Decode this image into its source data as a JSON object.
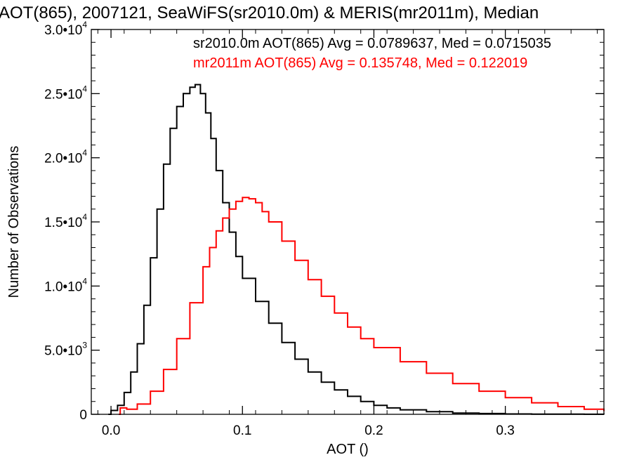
{
  "chart_data": {
    "type": "line",
    "title": "AOT(865), 2007121, SeaWiFS(sr2010.0m) & MERIS(mr2011m), Median",
    "xlabel": "AOT ()",
    "ylabel": "Number of Observations",
    "xlim": [
      -0.015,
      0.375
    ],
    "ylim": [
      0,
      30000
    ],
    "x_ticks": [
      0.0,
      0.1,
      0.2,
      0.3
    ],
    "x_tick_labels": [
      "0.0",
      "0.1",
      "0.2",
      "0.3"
    ],
    "y_ticks": [
      {
        "value": 0,
        "mantissa": "0",
        "exponent": ""
      },
      {
        "value": 5000,
        "mantissa": "5.0•10",
        "exponent": "3"
      },
      {
        "value": 10000,
        "mantissa": "1.0•10",
        "exponent": "4"
      },
      {
        "value": 15000,
        "mantissa": "1.5•10",
        "exponent": "4"
      },
      {
        "value": 20000,
        "mantissa": "2.0•10",
        "exponent": "4"
      },
      {
        "value": 25000,
        "mantissa": "2.5•10",
        "exponent": "4"
      },
      {
        "value": 30000,
        "mantissa": "3.0•10",
        "exponent": "4"
      }
    ],
    "grid": false,
    "legend_position": "top-right",
    "series": [
      {
        "name": "sr2010.0m AOT(865) Avg = 0.0789637, Med = 0.0715035",
        "color": "#000000",
        "x": [
          -0.002,
          0.0,
          0.005,
          0.01,
          0.015,
          0.02,
          0.025,
          0.03,
          0.035,
          0.04,
          0.045,
          0.05,
          0.055,
          0.06,
          0.064,
          0.068,
          0.072,
          0.076,
          0.08,
          0.085,
          0.09,
          0.095,
          0.1,
          0.11,
          0.12,
          0.13,
          0.14,
          0.15,
          0.16,
          0.17,
          0.18,
          0.19,
          0.2,
          0.21,
          0.22,
          0.24,
          0.26,
          0.28,
          0.3,
          0.32,
          0.34,
          0.36,
          0.375
        ],
        "y": [
          0,
          300,
          700,
          1700,
          3300,
          5500,
          8500,
          12200,
          16000,
          19500,
          22300,
          24000,
          25000,
          25500,
          25700,
          25000,
          23500,
          21500,
          19000,
          16500,
          14200,
          12300,
          10600,
          8800,
          7100,
          5600,
          4300,
          3300,
          2500,
          1900,
          1400,
          1000,
          700,
          500,
          350,
          200,
          100,
          60,
          30,
          15,
          10,
          5,
          0
        ]
      },
      {
        "name": "mr2011m AOT(865) Avg = 0.135748, Med = 0.122019",
        "color": "#ff0000",
        "x": [
          0.006,
          0.007,
          0.012,
          0.02,
          0.03,
          0.04,
          0.05,
          0.06,
          0.07,
          0.075,
          0.08,
          0.085,
          0.09,
          0.095,
          0.1,
          0.105,
          0.11,
          0.115,
          0.12,
          0.13,
          0.14,
          0.15,
          0.16,
          0.17,
          0.18,
          0.19,
          0.2,
          0.22,
          0.24,
          0.26,
          0.28,
          0.3,
          0.32,
          0.34,
          0.36,
          0.375
        ],
        "y": [
          0,
          500,
          400,
          800,
          1800,
          3500,
          5900,
          8700,
          11500,
          13000,
          14300,
          15300,
          16000,
          16600,
          16900,
          16800,
          16500,
          15800,
          15000,
          13500,
          12000,
          10500,
          9200,
          7900,
          6800,
          5900,
          5200,
          4100,
          3200,
          2400,
          1800,
          1300,
          900,
          600,
          400,
          250
        ]
      }
    ]
  }
}
